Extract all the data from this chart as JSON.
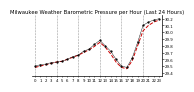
{
  "title": "Milwaukee Weather Barometric Pressure per Hour (Last 24 Hours)",
  "hours": [
    0,
    1,
    2,
    3,
    4,
    5,
    6,
    7,
    8,
    9,
    10,
    11,
    12,
    13,
    14,
    15,
    16,
    17,
    18,
    19,
    20,
    21,
    22,
    23
  ],
  "pressure_actual": [
    29.5,
    29.52,
    29.53,
    29.55,
    29.56,
    29.57,
    29.6,
    29.64,
    29.66,
    29.72,
    29.75,
    29.82,
    29.88,
    29.8,
    29.72,
    29.6,
    29.5,
    29.48,
    29.62,
    29.85,
    30.1,
    30.15,
    30.18,
    30.2
  ],
  "pressure_avg": [
    29.48,
    29.5,
    29.52,
    29.54,
    29.56,
    29.57,
    29.6,
    29.63,
    29.66,
    29.7,
    29.74,
    29.79,
    29.85,
    29.78,
    29.68,
    29.56,
    29.48,
    29.46,
    29.58,
    29.8,
    30.02,
    30.1,
    30.15,
    30.18
  ],
  "ylim": [
    29.35,
    30.25
  ],
  "yticks": [
    29.4,
    29.5,
    29.6,
    29.7,
    29.8,
    29.9,
    30.0,
    30.1,
    30.2
  ],
  "grid_xticks": [
    0,
    4,
    8,
    12,
    16,
    20
  ],
  "line_color": "#000000",
  "avg_line_color": "#cc0000",
  "bg_color": "#ffffff",
  "grid_color": "#999999",
  "title_fontsize": 3.8,
  "tick_fontsize": 2.8
}
